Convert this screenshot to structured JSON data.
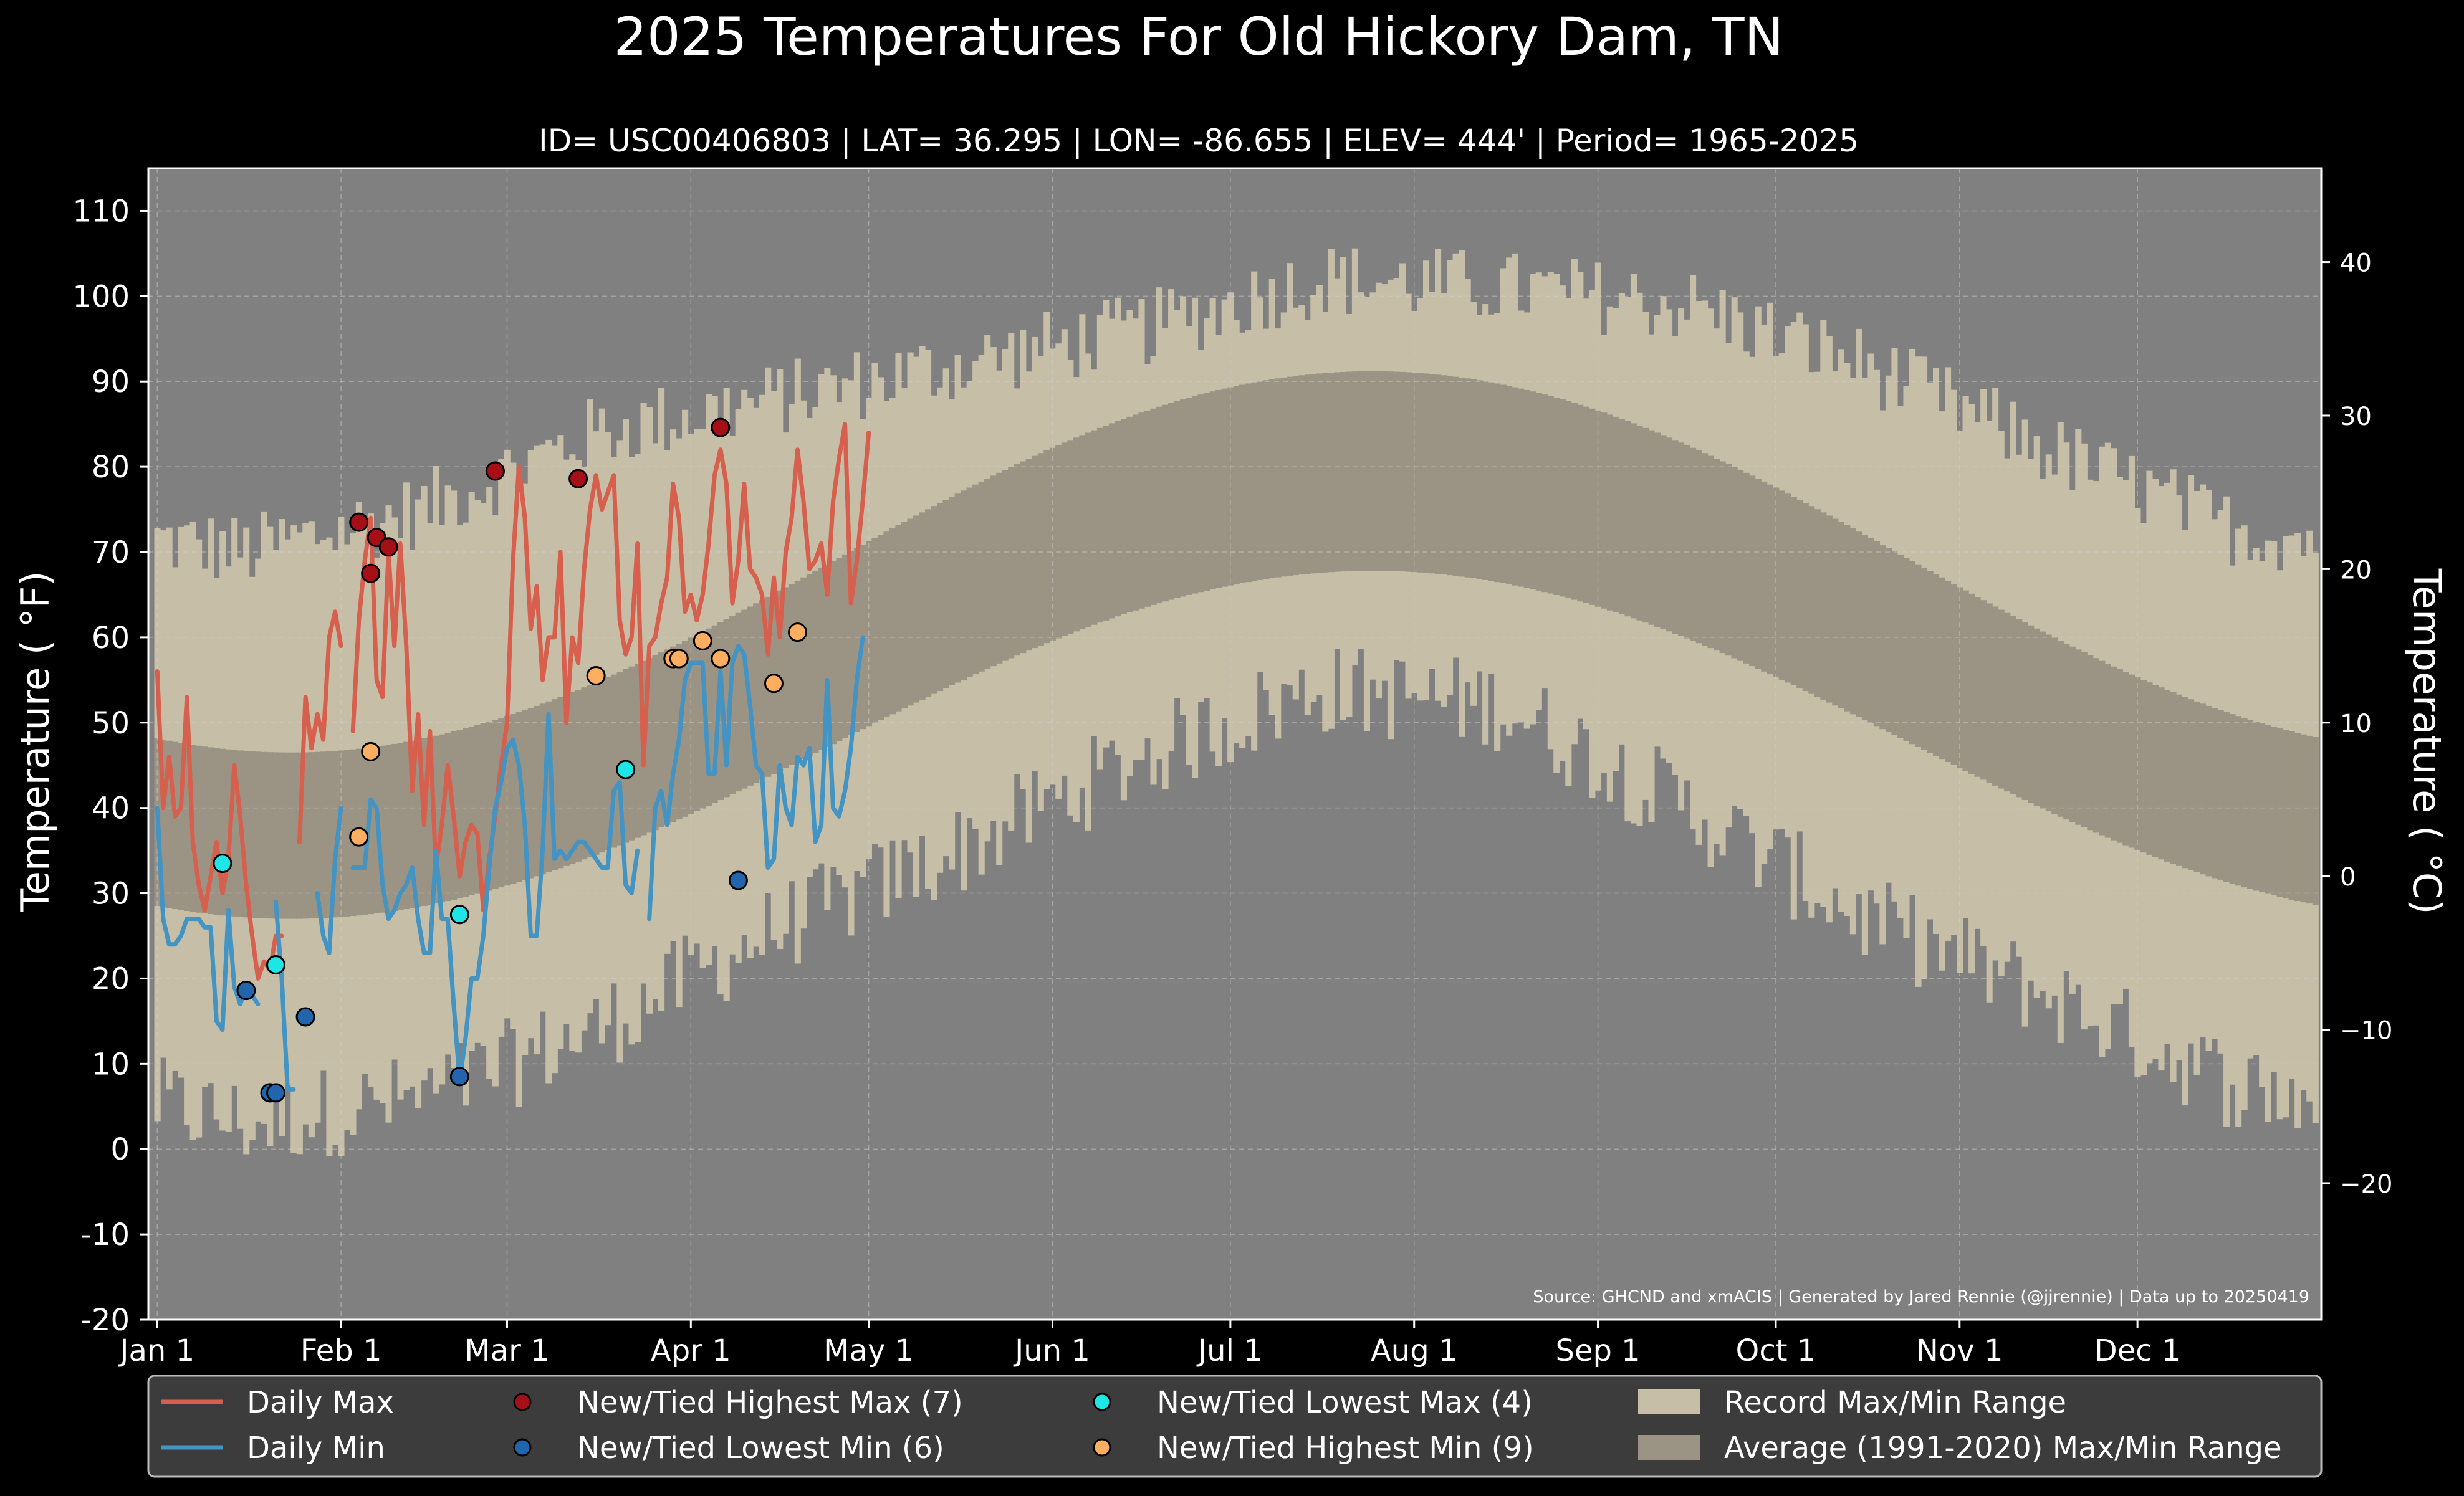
{
  "chart_data": {
    "type": "line",
    "title": "2025 Temperatures For Old Hickory Dam, TN",
    "subtitle": "ID= USC00406803 | LAT= 36.295 | LON= -86.655 | ELEV= 444' | Period= 1965-2025",
    "ylabel": "Temperature ( °F)",
    "ylabel2": "Temperature ( °C)",
    "source": "Source: GHCND and xmACIS | Generated by Jared Rennie (@jjrennie) | Data up to 20250419",
    "ylim": [
      -20,
      115
    ],
    "xlim": [
      -1.5,
      365
    ],
    "yticks": [
      "110",
      "100",
      "90",
      "80",
      "70",
      "60",
      "50",
      "40",
      "30",
      "20",
      "10",
      "0",
      "-10",
      "-20"
    ],
    "ytick_values": [
      110,
      100,
      90,
      80,
      70,
      60,
      50,
      40,
      30,
      20,
      10,
      0,
      -10,
      -20
    ],
    "y2ticks": [
      "40",
      "30",
      "20",
      "10",
      "0",
      "−10",
      "−20"
    ],
    "y2tick_values": [
      40,
      30,
      20,
      10,
      0,
      -10,
      -20
    ],
    "xticks": [
      "Jan 1",
      "Feb 1",
      "Mar 1",
      "Apr 1",
      "May 1",
      "Jun 1",
      "Jul 1",
      "Aug 1",
      "Sep 1",
      "Oct 1",
      "Nov 1",
      "Dec 1"
    ],
    "xtick_days": [
      0,
      31,
      59,
      90,
      120,
      151,
      181,
      212,
      243,
      273,
      304,
      334
    ],
    "grid": true,
    "colors": {
      "background": "#000000",
      "plot_bg": "#808080",
      "record_range": "#c6bea6",
      "normal_range": "#9b9383",
      "daily_max": "#d6604d",
      "daily_min": "#4393c3",
      "record_high_max": "#a50f15",
      "record_low_min": "#2166ac",
      "record_low_max": "#1ee6e6",
      "record_high_min": "#fdae61",
      "text": "#ffffff",
      "legend_bg": "#3c3c3c"
    },
    "record_envelope": {
      "months": [
        "Jan",
        "Feb",
        "Mar",
        "Apr",
        "May",
        "Jun",
        "Jul",
        "Aug",
        "Sep",
        "Oct",
        "Nov",
        "Dec"
      ],
      "record_max_monthly": [
        70,
        75,
        84,
        88,
        92,
        96,
        102,
        101,
        99,
        92,
        82,
        73
      ],
      "record_min_monthly": [
        3,
        6,
        14,
        26,
        35,
        46,
        54,
        52,
        40,
        27,
        18,
        8
      ]
    },
    "normal_range": {
      "min_low": 27,
      "min_high": 67.8,
      "min_peak_day": 205,
      "max_low": 46.5,
      "max_high": 91.2,
      "max_peak_day": 205
    },
    "legend": {
      "position": "bottom",
      "items": [
        {
          "label": "Daily Max",
          "kind": "line",
          "color": "#d6604d"
        },
        {
          "label": "Daily Min",
          "kind": "line",
          "color": "#4393c3"
        },
        {
          "label": "New/Tied Highest Max (7)",
          "kind": "dot",
          "color": "#a50f15"
        },
        {
          "label": "New/Tied Lowest Min (6)",
          "kind": "dot",
          "color": "#2166ac"
        },
        {
          "label": "New/Tied Lowest Max (4)",
          "kind": "dot",
          "color": "#1ee6e6"
        },
        {
          "label": "New/Tied Highest Min (9)",
          "kind": "dot",
          "color": "#fdae61"
        },
        {
          "label": "Record Max/Min Range",
          "kind": "patch",
          "color": "#c6bea6"
        },
        {
          "label": "Average (1991-2020) Max/Min Range",
          "kind": "patch",
          "color": "#9b9383"
        }
      ]
    },
    "series": [
      {
        "name": "Daily Max",
        "day_start": 0,
        "values": [
          56,
          40,
          46,
          39,
          40,
          53,
          36,
          31,
          28,
          32,
          36,
          30,
          34,
          45,
          39,
          31,
          25,
          20,
          22,
          21,
          25,
          25,
          null,
          null,
          36,
          53,
          47,
          51,
          48,
          60,
          63,
          59,
          null,
          49,
          62,
          69,
          74,
          55,
          53,
          70,
          59,
          71,
          59,
          42,
          51,
          38,
          49,
          33,
          38,
          45,
          39,
          32,
          36,
          38,
          37,
          28,
          34,
          39,
          45,
          50,
          69,
          80,
          74,
          61,
          66,
          55,
          60,
          60,
          70,
          50,
          60,
          57,
          68,
          75,
          79,
          75,
          77,
          79,
          62,
          58,
          60,
          71,
          45,
          59,
          60,
          64,
          67,
          78,
          74,
          63,
          65,
          62,
          65,
          71,
          79,
          82,
          78,
          64,
          69,
          78,
          68,
          67,
          65,
          58,
          67,
          60,
          70,
          74,
          82,
          76,
          68,
          69,
          71,
          65,
          76,
          81,
          85,
          64,
          69,
          76,
          84
        ]
      },
      {
        "name": "Daily Min",
        "day_start": 0,
        "values": [
          40,
          27,
          24,
          24,
          25,
          27,
          27,
          27,
          26,
          26,
          15,
          14,
          28,
          19,
          17,
          19,
          18,
          17,
          null,
          null,
          29,
          20,
          7,
          7,
          null,
          null,
          null,
          30,
          25,
          23,
          34,
          40,
          null,
          33,
          33,
          33,
          41,
          40,
          31,
          27,
          28,
          30,
          31,
          33,
          27,
          23,
          23,
          35,
          27,
          27,
          17,
          8,
          13,
          20,
          20,
          25,
          33,
          40,
          43,
          47,
          48,
          45,
          38,
          25,
          25,
          35,
          51,
          34,
          35,
          34,
          35,
          36,
          36,
          35,
          34,
          33,
          33,
          42,
          43,
          31,
          30,
          35,
          null,
          27,
          40,
          42,
          38,
          44,
          48,
          55,
          57,
          57,
          57,
          44,
          44,
          56,
          45,
          57,
          59,
          58,
          52,
          45,
          44,
          33,
          34,
          45,
          40,
          38,
          46,
          45,
          47,
          36,
          38,
          55,
          40,
          39,
          42,
          47,
          55,
          60
        ]
      }
    ],
    "annotations": {
      "record_high_max": [
        [
          34,
          73.5
        ],
        [
          36,
          67.5
        ],
        [
          37,
          71.7
        ],
        [
          39,
          70.6
        ],
        [
          57,
          79.5
        ],
        [
          71,
          78.6
        ],
        [
          95,
          84.6
        ]
      ],
      "record_low_min": [
        [
          15,
          18.6
        ],
        [
          19,
          6.6
        ],
        [
          20,
          6.6
        ],
        [
          25,
          15.5
        ],
        [
          51,
          8.5
        ],
        [
          98,
          31.5
        ]
      ],
      "record_low_max": [
        [
          11,
          33.5
        ],
        [
          20,
          21.6
        ],
        [
          51,
          27.5
        ],
        [
          79,
          44.5
        ]
      ],
      "record_high_min": [
        [
          34,
          36.6
        ],
        [
          36,
          46.6
        ],
        [
          74,
          55.5
        ],
        [
          87,
          57.5
        ],
        [
          88,
          57.5
        ],
        [
          92,
          59.6
        ],
        [
          95,
          57.5
        ],
        [
          104,
          54.6
        ],
        [
          108,
          60.6
        ]
      ]
    }
  }
}
